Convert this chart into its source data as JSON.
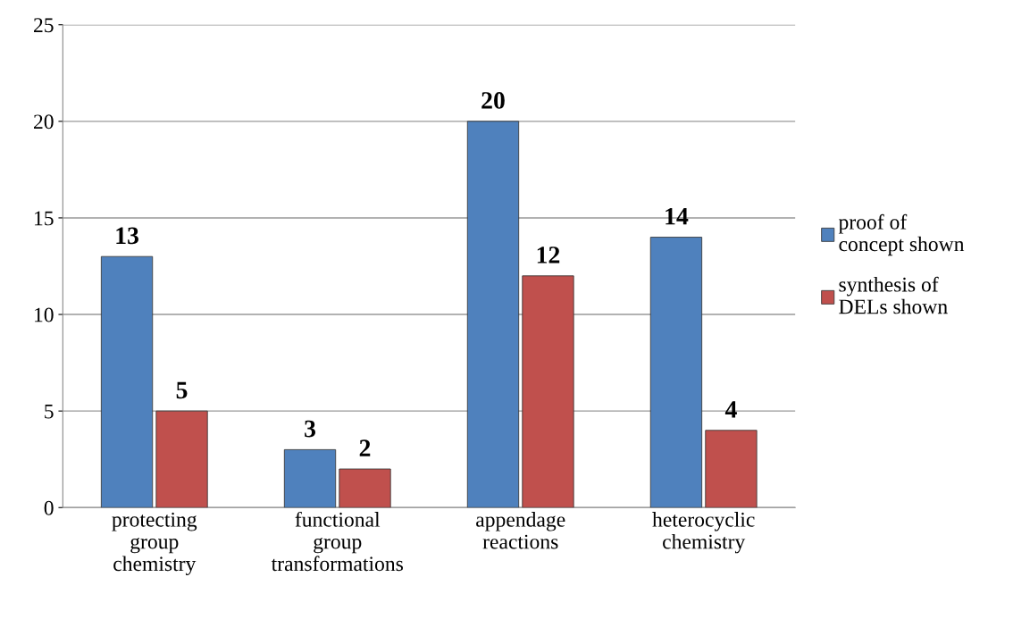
{
  "chart_data": {
    "type": "bar",
    "categories": [
      "protecting\ngroup\nchemistry",
      "functional\ngroup\ntransformations",
      "appendage\nreactions",
      "heterocyclic\nchemistry"
    ],
    "series": [
      {
        "name": "proof of\nconcept shown",
        "color": "#4f81bd",
        "values": [
          13,
          3,
          20,
          14
        ]
      },
      {
        "name": "synthesis of\nDELs shown",
        "color": "#c0504d",
        "values": [
          5,
          2,
          12,
          4
        ]
      }
    ],
    "ylim": [
      0,
      25
    ],
    "yticks": [
      0,
      5,
      10,
      15,
      20,
      25
    ],
    "grid": "y",
    "legend": "right",
    "data_labels": true
  }
}
